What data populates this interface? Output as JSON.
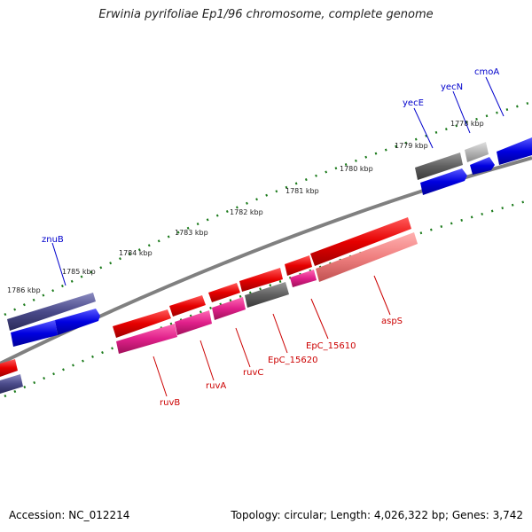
{
  "title": "Erwinia pyrifoliae Ep1/96 chromosome, complete genome",
  "footer": {
    "accession": "Accession: NC_012214",
    "summary": "Topology: circular; Length: 4,026,322 bp; Genes: 3,742"
  },
  "colors": {
    "backbone": "#808080",
    "ticks": "#1a7a1a",
    "label_forward": "#0000cc",
    "label_reverse": "#cc0000"
  },
  "scale": {
    "unit": "kbp",
    "labels": [
      "1786 kbp",
      "1785 kbp",
      "1784 kbp",
      "1783 kbp",
      "1782 kbp",
      "1781 kbp",
      "1780 kbp",
      "1779 kbp",
      "1778 kbp"
    ]
  },
  "genes": [
    {
      "id": "znuB",
      "label": "znuB",
      "strand": "forward",
      "color": "#4a4a8a"
    },
    {
      "id": "znuC",
      "label": "",
      "strand": "forward",
      "color": "#1010e0"
    },
    {
      "id": "yecE",
      "label": "yecE",
      "strand": "forward",
      "color": "#606060"
    },
    {
      "id": "yecN",
      "label": "yecN",
      "strand": "forward",
      "color": "#b4b4b4"
    },
    {
      "id": "cmoA",
      "label": "cmoA",
      "strand": "forward",
      "color": "#1010e0"
    },
    {
      "id": "ruvB",
      "label": "ruvB",
      "strand": "reverse",
      "color": "#e80000"
    },
    {
      "id": "ruvA",
      "label": "ruvA",
      "strand": "reverse",
      "color": "#e80000"
    },
    {
      "id": "ruvC",
      "label": "ruvC",
      "strand": "reverse",
      "color": "#e80000"
    },
    {
      "id": "EpC_15620",
      "label": "EpC_15620",
      "strand": "reverse",
      "color": "#e80000"
    },
    {
      "id": "EpC_15610",
      "label": "EpC_15610",
      "strand": "reverse",
      "color": "#e80000"
    },
    {
      "id": "aspS",
      "label": "aspS",
      "strand": "reverse",
      "color": "#e80000"
    }
  ]
}
